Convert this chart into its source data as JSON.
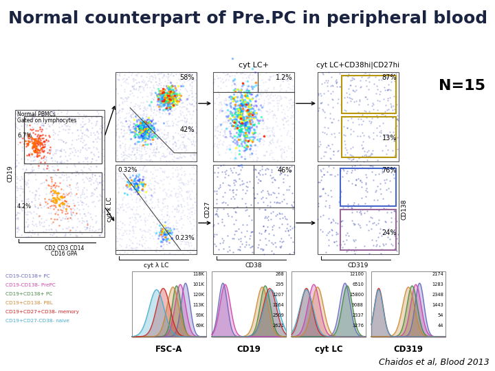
{
  "title": "Normal counterpart of Pre.PC in peripheral blood",
  "title_fontsize": 18,
  "title_color": "#1a2340",
  "n_label": "N=15",
  "n_label_fontsize": 16,
  "citation": "Chaidos et al, Blood 2013",
  "citation_fontsize": 9,
  "background_color": "#ffffff",
  "legend_labels": [
    "CD19-CD138+ PC",
    "CD19-CD138- PrePC",
    "CD19+CD138+ PC",
    "CD19+CD138- PBL",
    "CD19+CD27+CD38- memory",
    "CD19+CD27-CD38- naive"
  ],
  "legend_colors": [
    "#6666bb",
    "#cc44aa",
    "#448844",
    "#cc8833",
    "#cc2222",
    "#44aacc"
  ],
  "legend_values_fsc": [
    "118K",
    "101K",
    "120K",
    "113K",
    "93K",
    "69K"
  ],
  "legend_values_cd19": [
    "268",
    "295",
    "1207",
    "1164",
    "2509",
    "2621"
  ],
  "legend_values_cytlc": [
    "12100",
    "6510",
    "15800",
    "9088",
    "2337",
    "3276"
  ],
  "legend_values_cd319": [
    "2174",
    "1283",
    "2348",
    "1443",
    "54",
    "44"
  ],
  "histogram_xlabels": [
    "FSC-A",
    "CD19",
    "cyt LC",
    "CD319"
  ],
  "plot1_text1": "Normal PBMCs",
  "plot1_text2": "Gated on lymphocytes",
  "plot1_pct1": "6.7%",
  "plot1_pct2": "4.2%",
  "plot1_xlab": "CD2 CD3 CD14",
  "plot1_xlab2": "CD16 GPA",
  "plot1_ylab": "CD19",
  "plot2_pct1": "58%",
  "plot2_pct2": "42%",
  "plot3_pct1": "1.2%",
  "plot3_label": "cyt LC+",
  "plot4_pct1": "87%",
  "plot4_pct2": "13%",
  "plot4_label": "cyt LC+CD38hi|CD27hi",
  "plot5_pct1": "0.32%",
  "plot5_pct2": "0.23%",
  "plot5_ylab": "cyt κ LC",
  "plot5_xlab": "cyt λ LC",
  "plot6_pct1": "46%",
  "plot6_ylab": "CD27",
  "plot6_xlab": "CD38",
  "plot7_pct1": "76%",
  "plot7_pct2": "24%",
  "plot7_ylab": "CD138",
  "plot7_xlab": "CD319",
  "gate4_color": "#b8960a",
  "gate7_top_color": "#4466cc",
  "gate7_bot_color": "#996699"
}
